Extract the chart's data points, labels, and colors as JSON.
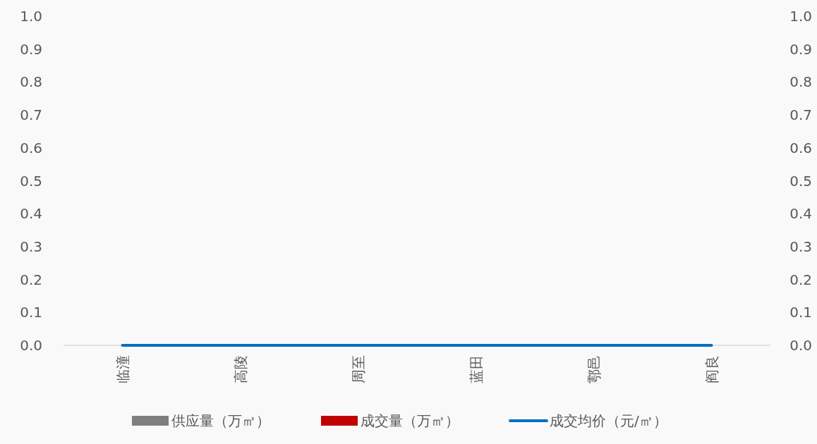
{
  "chart_data": {
    "type": "bar",
    "categories": [
      "临潼",
      "高陵",
      "周至",
      "蓝田",
      "鄠邑",
      "阎良"
    ],
    "series": [
      {
        "name": "供应量（万㎡）",
        "color": "#7f7f7f",
        "values": [
          0,
          0,
          0,
          0,
          0,
          0
        ]
      },
      {
        "name": "成交量（万㎡）",
        "color": "#c00000",
        "values": [
          0,
          0,
          0,
          0,
          0,
          0
        ]
      },
      {
        "name": "成交均价（元/㎡）",
        "color": "#0070c0",
        "type": "line",
        "axis": "y2",
        "values": [
          0,
          0,
          0,
          0,
          0,
          0
        ]
      }
    ],
    "ylim": [
      0,
      1
    ],
    "yticks": [
      {
        "value": 0,
        "label": "0.0"
      },
      {
        "value": 0.1,
        "label": "0.1"
      },
      {
        "value": 0.2,
        "label": "0.2"
      },
      {
        "value": 0.3,
        "label": "0.3"
      },
      {
        "value": 0.4,
        "label": "0.4"
      },
      {
        "value": 0.5,
        "label": "0.5"
      },
      {
        "value": 0.6,
        "label": "0.6"
      },
      {
        "value": 0.7,
        "label": "0.7"
      },
      {
        "value": 0.8,
        "label": "0.8"
      },
      {
        "value": 0.9,
        "label": "0.9"
      },
      {
        "value": 1,
        "label": "1.0"
      }
    ],
    "y2lim": [
      0,
      1
    ],
    "y2ticks": [
      {
        "value": 0,
        "label": "0.0"
      },
      {
        "value": 0.1,
        "label": "0.1"
      },
      {
        "value": 0.2,
        "label": "0.2"
      },
      {
        "value": 0.3,
        "label": "0.3"
      },
      {
        "value": 0.4,
        "label": "0.4"
      },
      {
        "value": 0.5,
        "label": "0.5"
      },
      {
        "value": 0.6,
        "label": "0.6"
      },
      {
        "value": 0.7,
        "label": "0.7"
      },
      {
        "value": 0.8,
        "label": "0.8"
      },
      {
        "value": 0.9,
        "label": "0.9"
      },
      {
        "value": 1,
        "label": "1.0"
      }
    ],
    "legend": "bottom",
    "grid": false
  }
}
